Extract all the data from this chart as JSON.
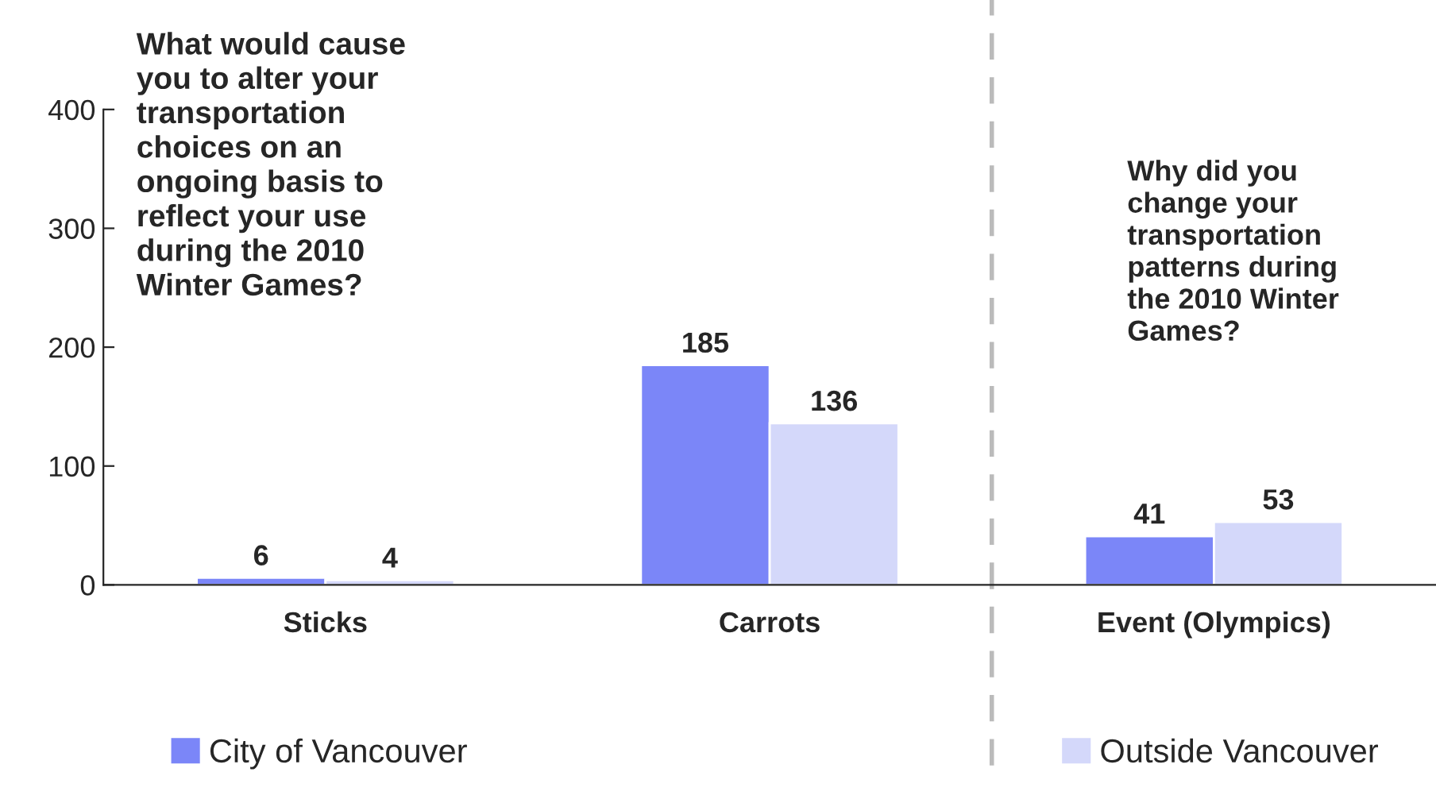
{
  "chart_data": {
    "type": "bar",
    "categories": [
      "Sticks",
      "Carrots",
      "Event (Olympics)"
    ],
    "series": [
      {
        "name": "City of Vancouver",
        "color": "#7b86f8",
        "values": [
          6,
          185,
          41
        ]
      },
      {
        "name": "Outside Vancouver",
        "color": "#d4d8fa",
        "values": [
          4,
          136,
          53
        ]
      }
    ],
    "ylim": [
      0,
      400
    ],
    "yticks": [
      0,
      100,
      200,
      300,
      400
    ],
    "data_labels": true,
    "grid": false,
    "legend": "bottom",
    "annotations": [
      "What would cause you to alter your transportation choices on an ongoing basis to reflect your use during the 2010 Winter Games?",
      "Why did you change your transportation patterns during the 2010 Winter Games?"
    ]
  }
}
